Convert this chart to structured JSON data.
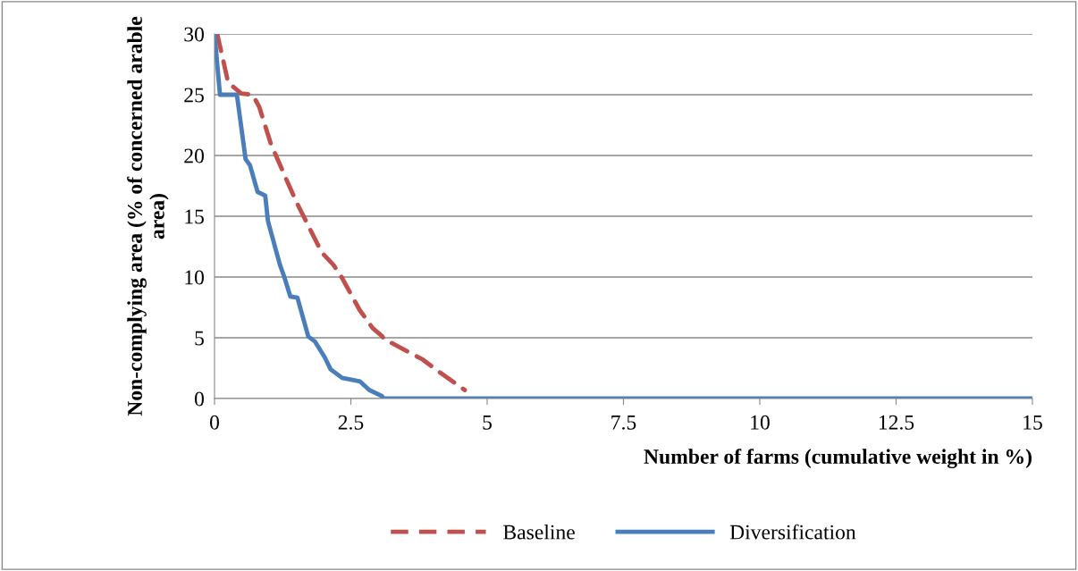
{
  "chart_data": {
    "type": "line",
    "xlabel": "Number of farms (cumulative weight in %)",
    "ylabel": "Non-complying area (% of concerned arable area)",
    "xlim": [
      0,
      15
    ],
    "ylim": [
      0,
      30
    ],
    "xticks": [
      0,
      2.5,
      5,
      7.5,
      10,
      12.5,
      15
    ],
    "yticks": [
      0,
      5,
      10,
      15,
      20,
      25,
      30
    ],
    "grid": "y",
    "legend": "bottom",
    "series": [
      {
        "name": "Baseline",
        "color": "#c0504d",
        "line_style": "dashed",
        "x": [
          0.05,
          0.25,
          0.49,
          0.7,
          0.82,
          1.03,
          1.31,
          1.51,
          1.8,
          1.97,
          2.18,
          2.33,
          2.66,
          2.9,
          3.08,
          3.11,
          3.82,
          4.15,
          4.59
        ],
        "values": [
          30,
          26,
          25.1,
          25,
          24,
          21,
          18.1,
          16.1,
          13.5,
          12,
          11,
          10,
          7.3,
          5.8,
          5.1,
          4.9,
          3.2,
          2.1,
          0.7
        ]
      },
      {
        "name": "Diversification",
        "color": "#4a7ebb",
        "line_style": "solid",
        "x": [
          0,
          0.1,
          0.41,
          0.57,
          0.65,
          0.79,
          0.93,
          0.98,
          1.2,
          1.28,
          1.39,
          1.52,
          1.72,
          1.84,
          2.02,
          2.13,
          2.34,
          2.67,
          2.84,
          3.07,
          3.1,
          15
        ],
        "values": [
          30,
          25,
          25,
          19.7,
          19.2,
          17,
          16.7,
          14.6,
          11,
          10,
          8.4,
          8.3,
          5.1,
          4.7,
          3.4,
          2.4,
          1.7,
          1.4,
          0.7,
          0.2,
          0,
          0
        ]
      }
    ]
  }
}
